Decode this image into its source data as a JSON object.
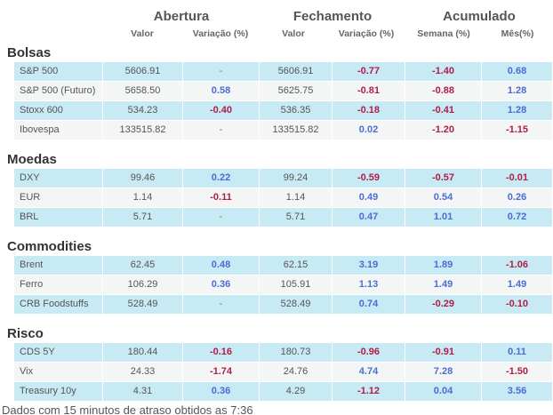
{
  "header": {
    "groups": [
      "Abertura",
      "Fechamento",
      "Acumulado"
    ],
    "columns": [
      "Valor",
      "Variação (%)",
      "Valor",
      "Variação (%)",
      "Semana (%)",
      "Mês(%)"
    ]
  },
  "sections": [
    {
      "title": "Bolsas",
      "rows": [
        [
          "S&P 500",
          "5606.91",
          "-",
          "5606.91",
          "-0.77",
          "-1.40",
          "0.68"
        ],
        [
          "S&P 500 (Futuro)",
          "5658.50",
          "0.58",
          "5625.75",
          "-0.81",
          "-0.88",
          "1.28"
        ],
        [
          "Stoxx 600",
          "534.23",
          "-0.40",
          "536.35",
          "-0.18",
          "-0.41",
          "1.28"
        ],
        [
          "Ibovespa",
          "133515.82",
          "-",
          "133515.82",
          "0.02",
          "-1.20",
          "-1.15"
        ]
      ]
    },
    {
      "title": "Moedas",
      "rows": [
        [
          "DXY",
          "99.46",
          "0.22",
          "99.24",
          "-0.59",
          "-0.57",
          "-0.01"
        ],
        [
          "EUR",
          "1.14",
          "-0.11",
          "1.14",
          "0.49",
          "0.54",
          "0.26"
        ],
        [
          "BRL",
          "5.71",
          "-",
          "5.71",
          "0.47",
          "1.01",
          "0.72"
        ]
      ]
    },
    {
      "title": "Commodities",
      "rows": [
        [
          "Brent",
          "62.45",
          "0.48",
          "62.15",
          "3.19",
          "1.89",
          "-1.06"
        ],
        [
          "Ferro",
          "106.29",
          "0.36",
          "105.91",
          "1.13",
          "1.49",
          "1.49"
        ],
        [
          "CRB Foodstuffs",
          "528.49",
          "-",
          "528.49",
          "0.74",
          "-0.29",
          "-0.10"
        ]
      ]
    },
    {
      "title": "Risco",
      "rows": [
        [
          "CDS 5Y",
          "180.44",
          "-0.16",
          "180.73",
          "-0.96",
          "-0.91",
          "0.11"
        ],
        [
          "Vix",
          "24.33",
          "-1.74",
          "24.76",
          "4.74",
          "7.28",
          "-1.50"
        ],
        [
          "Treasury 10y",
          "4.31",
          "0.36",
          "4.29",
          "-1.12",
          "0.04",
          "3.56"
        ]
      ]
    }
  ],
  "footer": "Dados com 15 minutos de atraso obtidos as 7:36"
}
